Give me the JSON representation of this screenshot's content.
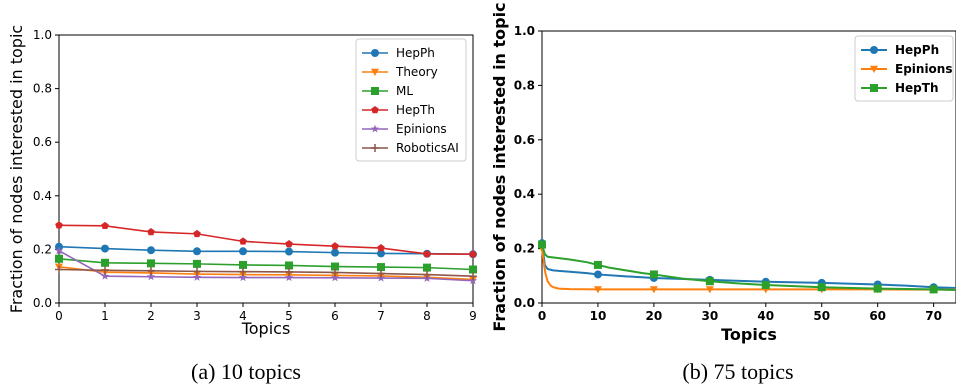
{
  "chart_data": [
    {
      "type": "line",
      "caption": "(a) 10 topics",
      "xlabel": "Topics",
      "ylabel": "Fraction of nodes interested in topic",
      "xlim": [
        0,
        9
      ],
      "ylim": [
        0,
        1.0
      ],
      "xticks": [
        "0",
        "1",
        "2",
        "3",
        "4",
        "5",
        "6",
        "7",
        "8",
        "9"
      ],
      "yticks": [
        "0.0",
        "0.2",
        "0.4",
        "0.6",
        "0.8",
        "1.0"
      ],
      "legend_position": "top-right",
      "x": [
        0,
        1,
        2,
        3,
        4,
        5,
        6,
        7,
        8,
        9
      ],
      "series": [
        {
          "name": "HepPh",
          "color": "#1f77b4",
          "marker": "circle",
          "values": [
            0.21,
            0.203,
            0.197,
            0.193,
            0.193,
            0.192,
            0.188,
            0.185,
            0.184,
            0.182
          ]
        },
        {
          "name": "Theory",
          "color": "#ff7f0e",
          "marker": "triangle-down",
          "values": [
            0.135,
            0.115,
            0.112,
            0.108,
            0.106,
            0.105,
            0.103,
            0.101,
            0.096,
            0.088
          ]
        },
        {
          "name": "ML",
          "color": "#2ca02c",
          "marker": "square",
          "values": [
            0.165,
            0.15,
            0.148,
            0.146,
            0.142,
            0.14,
            0.136,
            0.134,
            0.132,
            0.125
          ]
        },
        {
          "name": "HepTh",
          "color": "#d62728",
          "marker": "pentagon",
          "values": [
            0.29,
            0.288,
            0.265,
            0.258,
            0.23,
            0.22,
            0.212,
            0.205,
            0.183,
            0.182
          ]
        },
        {
          "name": "Epinions",
          "color": "#9467bd",
          "marker": "star",
          "values": [
            0.195,
            0.1,
            0.098,
            0.096,
            0.095,
            0.095,
            0.094,
            0.093,
            0.092,
            0.083
          ]
        },
        {
          "name": "RoboticsAI",
          "color": "#8c564b",
          "marker": "plus",
          "values": [
            0.125,
            0.122,
            0.12,
            0.118,
            0.117,
            0.116,
            0.114,
            0.11,
            0.106,
            0.1
          ]
        }
      ]
    },
    {
      "type": "line",
      "caption": "(b) 75 topics",
      "xlabel": "Topics",
      "ylabel": "Fraction of nodes interested in topic",
      "xlim": [
        0,
        74
      ],
      "ylim": [
        0,
        1.0
      ],
      "xticks": [
        "0",
        "10",
        "20",
        "30",
        "40",
        "50",
        "60",
        "70"
      ],
      "yticks": [
        "0.0",
        "0.2",
        "0.4",
        "0.6",
        "0.8",
        "1.0"
      ],
      "legend_position": "top-right",
      "series": [
        {
          "name": "HepPh",
          "color": "#1f77b4",
          "marker": "circle",
          "marker_every": 10,
          "x": [
            0,
            0.5,
            1,
            2,
            3,
            5,
            8,
            10,
            15,
            20,
            30,
            40,
            50,
            60,
            65,
            70,
            74
          ],
          "values": [
            0.22,
            0.14,
            0.125,
            0.12,
            0.118,
            0.115,
            0.11,
            0.105,
            0.098,
            0.092,
            0.085,
            0.078,
            0.074,
            0.068,
            0.064,
            0.058,
            0.055
          ]
        },
        {
          "name": "Epinions",
          "color": "#ff7f0e",
          "marker": "triangle-down",
          "marker_every": 10,
          "x": [
            0,
            0.3,
            0.6,
            1,
            1.5,
            2,
            3,
            5,
            10,
            20,
            30,
            40,
            50,
            60,
            70,
            74
          ],
          "values": [
            0.2,
            0.15,
            0.11,
            0.08,
            0.065,
            0.058,
            0.053,
            0.051,
            0.05,
            0.05,
            0.05,
            0.05,
            0.05,
            0.05,
            0.049,
            0.049
          ]
        },
        {
          "name": "HepTh",
          "color": "#2ca02c",
          "marker": "square",
          "marker_every": 10,
          "x": [
            0,
            0.5,
            1,
            3,
            5,
            8,
            10,
            12,
            15,
            18,
            20,
            25,
            30,
            35,
            40,
            50,
            60,
            70,
            74
          ],
          "values": [
            0.215,
            0.18,
            0.17,
            0.165,
            0.16,
            0.15,
            0.14,
            0.13,
            0.12,
            0.11,
            0.105,
            0.09,
            0.08,
            0.072,
            0.066,
            0.058,
            0.053,
            0.05,
            0.048
          ]
        }
      ]
    }
  ]
}
